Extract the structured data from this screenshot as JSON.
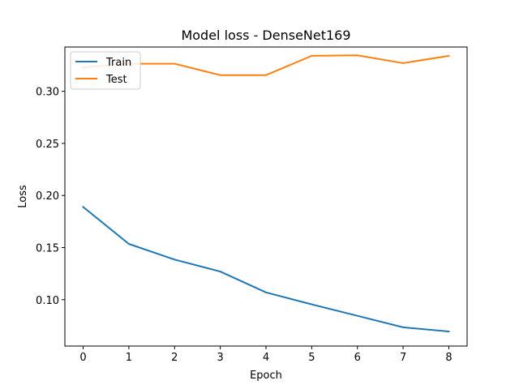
{
  "chart_data": {
    "type": "line",
    "title": "Model loss - DenseNet169",
    "xlabel": "Epoch",
    "ylabel": "Loss",
    "x": [
      0,
      1,
      2,
      3,
      4,
      5,
      6,
      7,
      8
    ],
    "xticks": [
      0,
      1,
      2,
      3,
      4,
      5,
      6,
      7,
      8
    ],
    "yticks": [
      0.1,
      0.15,
      0.2,
      0.25,
      0.3
    ],
    "xlim": [
      -0.4,
      8.4
    ],
    "ylim": [
      0.0555,
      0.3425
    ],
    "grid": false,
    "legend_position": "top-left",
    "series": [
      {
        "name": "Train",
        "color": "#1f77b4",
        "values": [
          0.189,
          0.1535,
          0.1385,
          0.127,
          0.107,
          0.0955,
          0.0845,
          0.0735,
          0.0695
        ]
      },
      {
        "name": "Test",
        "color": "#ff7f0e",
        "values": [
          0.323,
          0.3265,
          0.3265,
          0.3155,
          0.3155,
          0.334,
          0.3345,
          0.327,
          0.334
        ]
      }
    ]
  }
}
